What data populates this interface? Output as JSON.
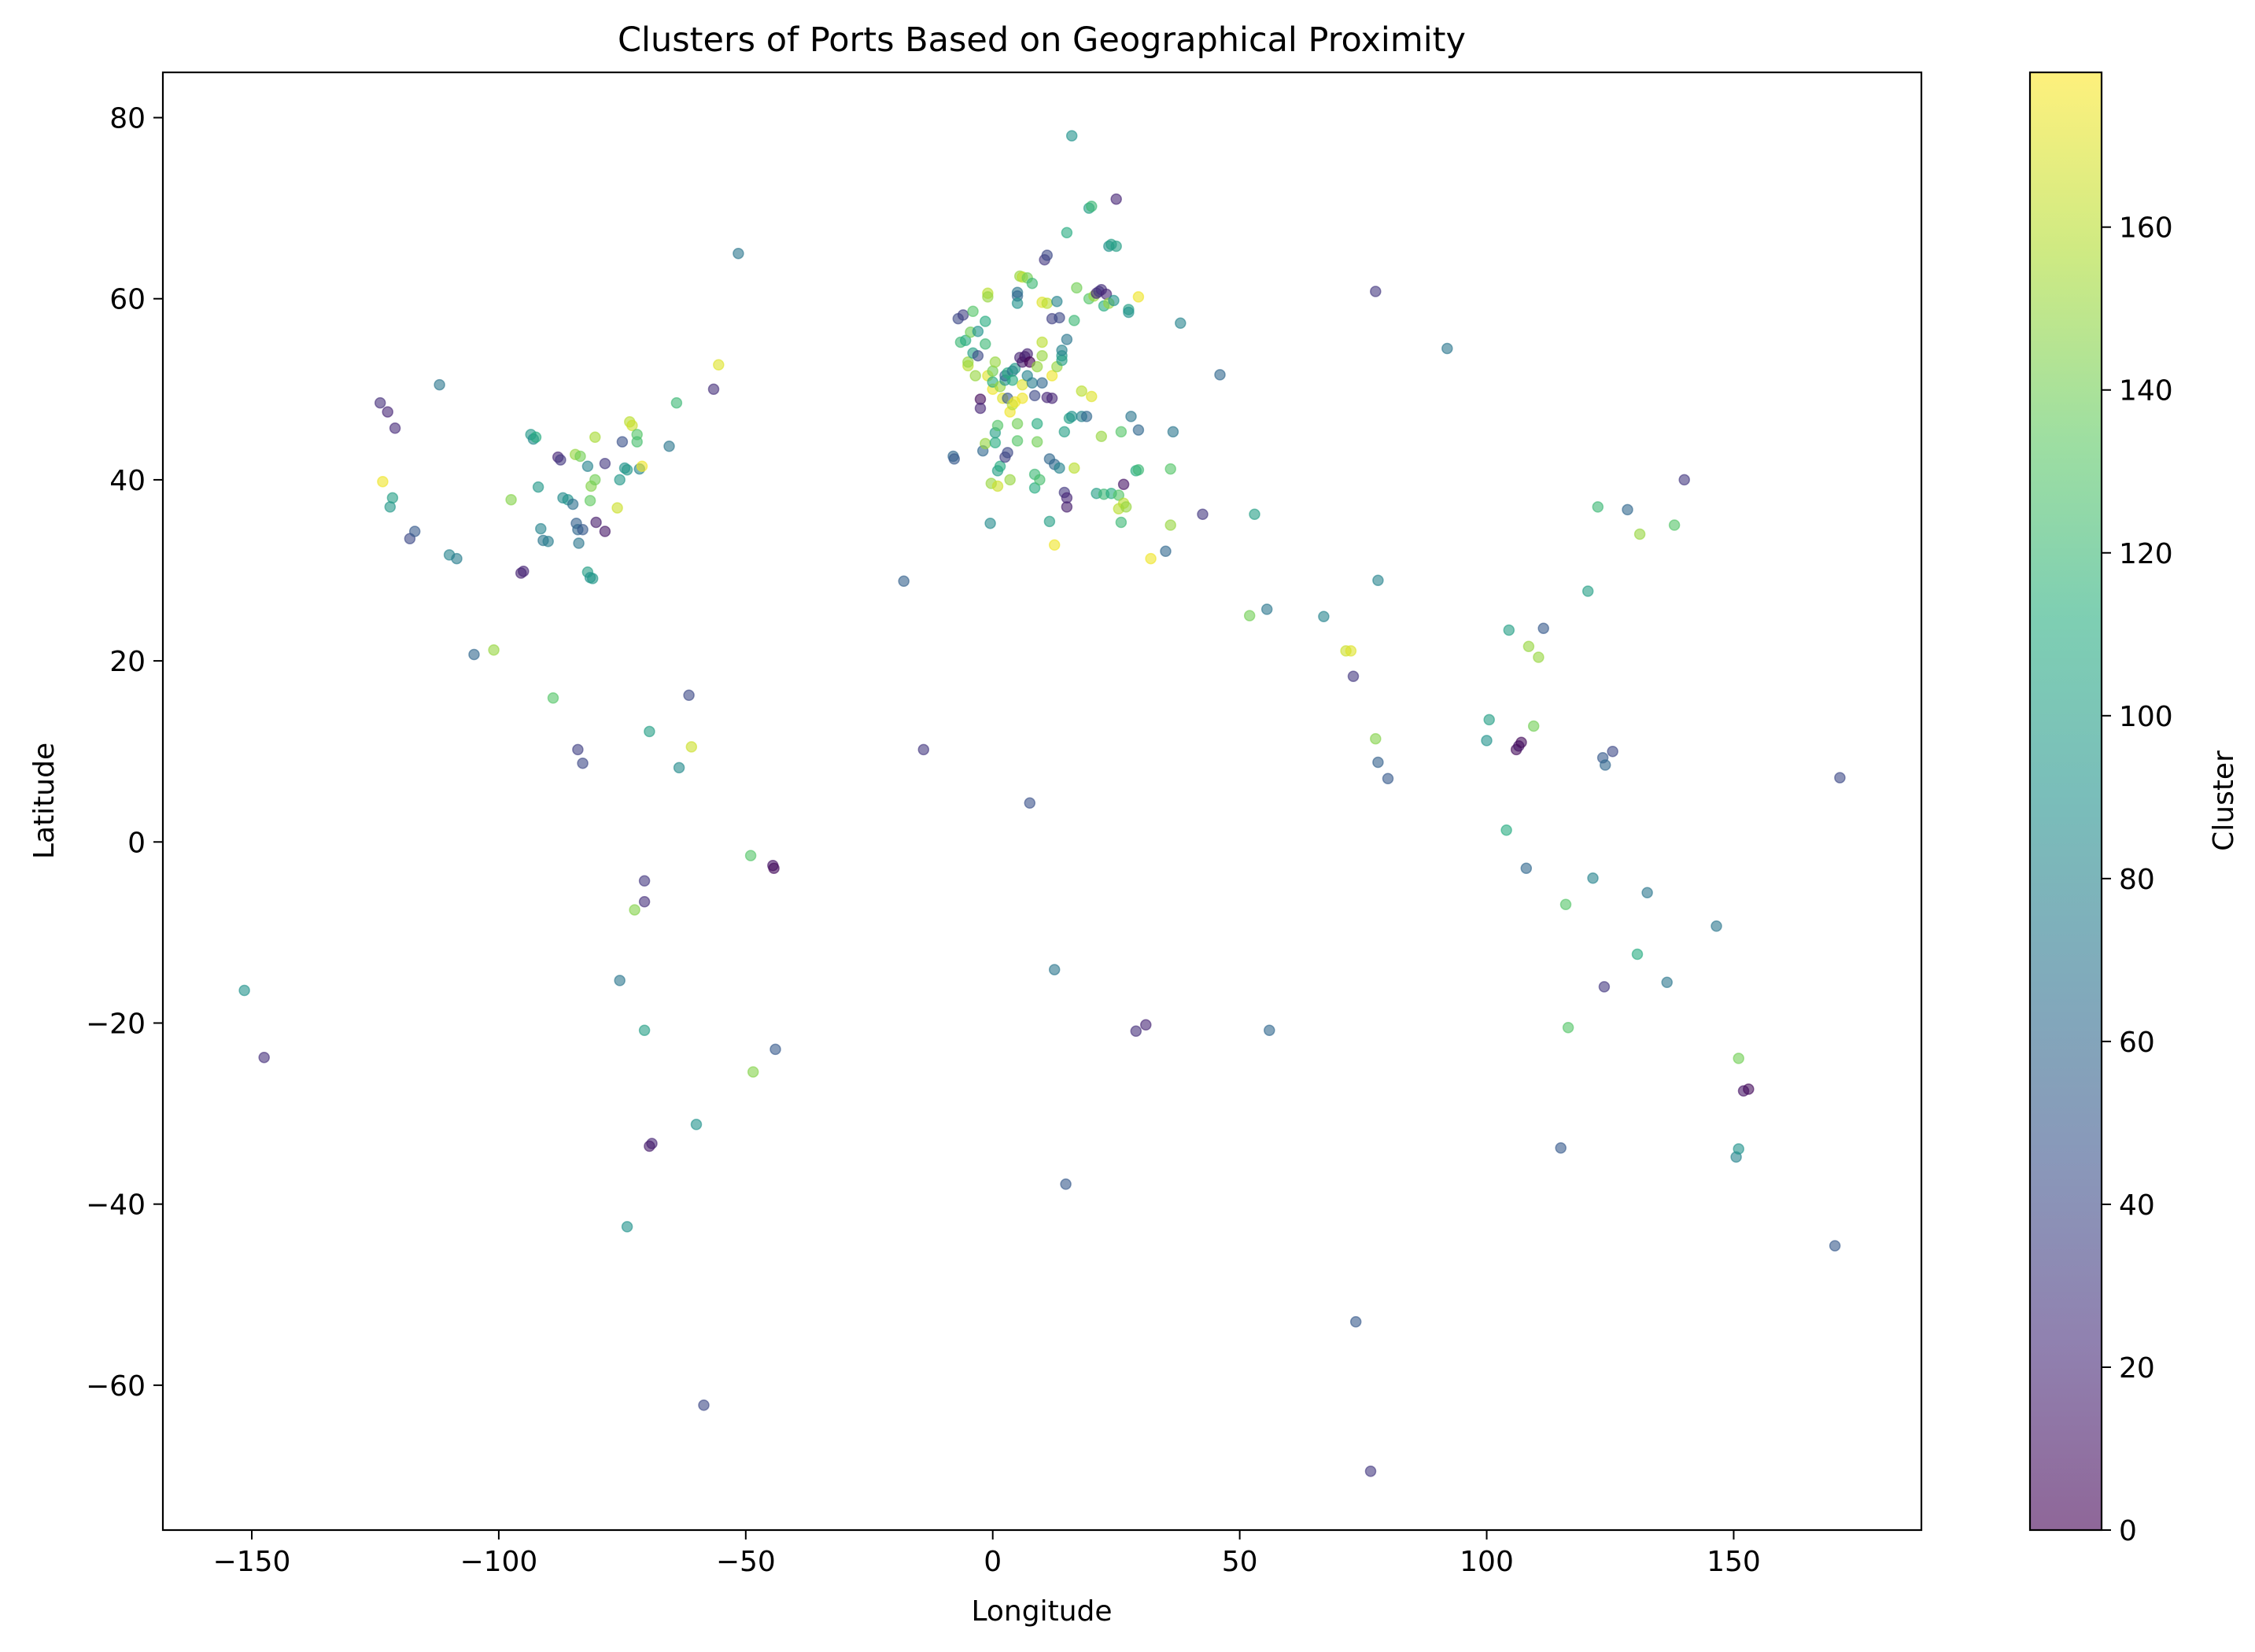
{
  "chart_data": {
    "type": "scatter",
    "title": "Clusters of Ports Based on Geographical Proximity",
    "xlabel": "Longitude",
    "ylabel": "Latitude",
    "xlim": [
      -168,
      188
    ],
    "ylim": [
      -76,
      85
    ],
    "xticks": [
      -150,
      -100,
      -50,
      0,
      50,
      100,
      150
    ],
    "yticks": [
      -60,
      -40,
      -20,
      0,
      20,
      40,
      60,
      80
    ],
    "grid": false,
    "marker_alpha": 0.6,
    "colormap": "viridis",
    "colorbar": {
      "label": "Cluster",
      "range": [
        0,
        179
      ],
      "ticks": [
        0,
        20,
        40,
        60,
        80,
        100,
        120,
        140,
        160
      ]
    },
    "points": [
      [
        -124,
        48.5,
        25
      ],
      [
        -122.5,
        47.5,
        20
      ],
      [
        -121,
        45.7,
        22
      ],
      [
        -123.5,
        39.8,
        175
      ],
      [
        -121.5,
        38,
        100
      ],
      [
        -122,
        37,
        95
      ],
      [
        -118,
        33.5,
        40
      ],
      [
        -117,
        34.3,
        50
      ],
      [
        -112,
        50.5,
        70
      ],
      [
        -110,
        31.7,
        80
      ],
      [
        -108.5,
        31.3,
        75
      ],
      [
        -105,
        20.7,
        60
      ],
      [
        -101,
        21.2,
        150
      ],
      [
        -95.5,
        29.7,
        18
      ],
      [
        -95,
        29.9,
        20
      ],
      [
        -97.5,
        37.8,
        145
      ],
      [
        -93.5,
        45,
        95
      ],
      [
        -93,
        44.5,
        85
      ],
      [
        -92.5,
        44.7,
        110
      ],
      [
        -92,
        39.2,
        95
      ],
      [
        -91.5,
        34.6,
        80
      ],
      [
        -91,
        33.3,
        70
      ],
      [
        -90,
        33.2,
        75
      ],
      [
        -89,
        15.9,
        130
      ],
      [
        -88,
        42.5,
        20
      ],
      [
        -87.5,
        42.2,
        30
      ],
      [
        -87,
        38,
        85
      ],
      [
        -86,
        37.8,
        90
      ],
      [
        -85,
        37.3,
        65
      ],
      [
        -84.5,
        42.8,
        150
      ],
      [
        -84.3,
        35.2,
        55
      ],
      [
        -84,
        34.5,
        60
      ],
      [
        -83.8,
        33,
        70
      ],
      [
        -83.5,
        42.6,
        140
      ],
      [
        -83,
        34.5,
        50
      ],
      [
        -84,
        10.2,
        35
      ],
      [
        -83,
        8.7,
        40
      ],
      [
        -82,
        29.8,
        100
      ],
      [
        -81.5,
        29.2,
        90
      ],
      [
        -81,
        29.1,
        95
      ],
      [
        -82,
        41.5,
        80
      ],
      [
        -81.5,
        37.7,
        135
      ],
      [
        -81.3,
        39.3,
        145
      ],
      [
        -80.5,
        40,
        140
      ],
      [
        -80.5,
        44.7,
        155
      ],
      [
        -80.3,
        35.3,
        15
      ],
      [
        -78.5,
        34.3,
        12
      ],
      [
        -78.5,
        41.8,
        30
      ],
      [
        -76,
        36.9,
        165
      ],
      [
        -75.5,
        40,
        95
      ],
      [
        -75,
        44.2,
        45
      ],
      [
        -74.5,
        41.3,
        90
      ],
      [
        -74,
        41.1,
        95
      ],
      [
        -73.5,
        46.4,
        160
      ],
      [
        -73,
        46,
        165
      ],
      [
        -72,
        45,
        130
      ],
      [
        -72,
        44.2,
        125
      ],
      [
        -71.5,
        41.2,
        80
      ],
      [
        -71,
        41.5,
        175
      ],
      [
        -65.5,
        43.7,
        70
      ],
      [
        -64,
        48.5,
        120
      ],
      [
        -61.5,
        16.2,
        40
      ],
      [
        -61,
        10.5,
        165
      ],
      [
        -63.5,
        8.2,
        85
      ],
      [
        -69.5,
        12.2,
        100
      ],
      [
        -56.5,
        50,
        25
      ],
      [
        -55.5,
        52.7,
        170
      ],
      [
        -51.5,
        65,
        70
      ],
      [
        -70.5,
        -4.3,
        30
      ],
      [
        -70.5,
        -6.6,
        25
      ],
      [
        -72.5,
        -7.5,
        145
      ],
      [
        -75.5,
        -15.3,
        70
      ],
      [
        -70.5,
        -20.8,
        100
      ],
      [
        -69,
        -33.3,
        20
      ],
      [
        -69.5,
        -33.6,
        15
      ],
      [
        -60,
        -31.2,
        90
      ],
      [
        -74,
        -42.5,
        90
      ],
      [
        -58.5,
        -62.2,
        40
      ],
      [
        -49,
        -1.5,
        130
      ],
      [
        -44.5,
        -2.6,
        10
      ],
      [
        -44.3,
        -2.9,
        5
      ],
      [
        -44,
        -22.9,
        50
      ],
      [
        -48.5,
        -25.4,
        145
      ],
      [
        -151.5,
        -16.4,
        90
      ],
      [
        -147.5,
        -23.8,
        25
      ],
      [
        -18,
        28.8,
        55
      ],
      [
        -14,
        10.2,
        30
      ],
      [
        -8,
        42.6,
        60
      ],
      [
        -7.8,
        42.3,
        50
      ],
      [
        -7,
        57.8,
        40
      ],
      [
        -6.5,
        55.2,
        120
      ],
      [
        -6,
        58.2,
        35
      ],
      [
        -5.5,
        55.4,
        110
      ],
      [
        -5,
        52.6,
        160
      ],
      [
        -5,
        53,
        150
      ],
      [
        -4.5,
        56.3,
        140
      ],
      [
        -4,
        58.6,
        130
      ],
      [
        -4,
        54,
        100
      ],
      [
        -3.5,
        51.5,
        150
      ],
      [
        -3,
        53.7,
        40
      ],
      [
        -3,
        56.4,
        90
      ],
      [
        -2.5,
        48.9,
        5
      ],
      [
        -2.5,
        47.9,
        20
      ],
      [
        -2,
        43.2,
        60
      ],
      [
        -1.5,
        44,
        150
      ],
      [
        -1.5,
        57.5,
        110
      ],
      [
        -1.5,
        55,
        120
      ],
      [
        -1,
        60.6,
        160
      ],
      [
        -1,
        60.2,
        150
      ],
      [
        -0.5,
        35.2,
        85
      ],
      [
        -0.3,
        39.6,
        150
      ],
      [
        -1,
        51.5,
        170
      ],
      [
        0,
        50,
        175
      ],
      [
        0,
        50.8,
        110
      ],
      [
        0,
        52,
        140
      ],
      [
        0.5,
        53,
        150
      ],
      [
        0.5,
        44.1,
        110
      ],
      [
        0.5,
        45.2,
        100
      ],
      [
        1,
        41,
        100
      ],
      [
        1,
        46,
        130
      ],
      [
        1,
        39.3,
        165
      ],
      [
        1.5,
        41.5,
        110
      ],
      [
        1.5,
        50.3,
        150
      ],
      [
        2,
        49,
        170
      ],
      [
        2.5,
        51,
        90
      ],
      [
        2.5,
        42.5,
        35
      ],
      [
        2.5,
        51.5,
        60
      ],
      [
        3,
        43,
        40
      ],
      [
        3,
        51.8,
        110
      ],
      [
        3,
        49,
        50
      ],
      [
        3.5,
        40,
        150
      ],
      [
        3.5,
        47.5,
        175
      ],
      [
        4,
        52,
        70
      ],
      [
        4,
        48.3,
        160
      ],
      [
        4,
        51,
        110
      ],
      [
        4.5,
        52.3,
        95
      ],
      [
        4.5,
        48.6,
        175
      ],
      [
        5,
        60.7,
        70
      ],
      [
        5,
        60.3,
        60
      ],
      [
        5,
        59.5,
        90
      ],
      [
        5,
        46.2,
        140
      ],
      [
        5,
        44.3,
        130
      ],
      [
        5.5,
        62.5,
        150
      ],
      [
        5.5,
        53.5,
        20
      ],
      [
        6,
        62.4,
        160
      ],
      [
        6,
        53,
        15
      ],
      [
        6,
        50.5,
        170
      ],
      [
        6,
        49,
        175
      ],
      [
        6.5,
        53.6,
        10
      ],
      [
        7,
        62.3,
        140
      ],
      [
        7,
        53.9,
        20
      ],
      [
        7,
        51.5,
        80
      ],
      [
        7.5,
        4.3,
        45
      ],
      [
        7.5,
        53,
        0
      ],
      [
        8,
        61.7,
        120
      ],
      [
        8,
        50.7,
        75
      ],
      [
        8.5,
        49.3,
        40
      ],
      [
        8.5,
        40.6,
        120
      ],
      [
        8.5,
        39.1,
        110
      ],
      [
        9,
        46.2,
        110
      ],
      [
        9,
        44.2,
        140
      ],
      [
        9,
        52.5,
        150
      ],
      [
        9.5,
        40,
        125
      ],
      [
        10,
        55.2,
        160
      ],
      [
        10,
        53.7,
        150
      ],
      [
        10,
        50.7,
        60
      ],
      [
        10,
        59.6,
        170
      ],
      [
        10.5,
        64.3,
        30
      ],
      [
        11,
        59.5,
        160
      ],
      [
        11,
        64.8,
        40
      ],
      [
        11,
        49.1,
        20
      ],
      [
        11.5,
        35.4,
        100
      ],
      [
        11.5,
        42.3,
        60
      ],
      [
        12,
        49,
        20
      ],
      [
        12,
        51.5,
        175
      ],
      [
        12,
        57.8,
        35
      ],
      [
        12.5,
        41.7,
        60
      ],
      [
        12.5,
        32.8,
        175
      ],
      [
        12.5,
        -14.1,
        70
      ],
      [
        13,
        52.5,
        150
      ],
      [
        13,
        59.7,
        80
      ],
      [
        13.5,
        57.9,
        40
      ],
      [
        13.5,
        41.3,
        80
      ],
      [
        14,
        53.7,
        95
      ],
      [
        14,
        53.2,
        100
      ],
      [
        14,
        54.3,
        80
      ],
      [
        14.5,
        45.3,
        100
      ],
      [
        14.5,
        38.6,
        30
      ],
      [
        14.8,
        -37.8,
        50
      ],
      [
        15,
        67.3,
        110
      ],
      [
        15,
        55.5,
        70
      ],
      [
        15,
        37,
        15
      ],
      [
        15,
        38,
        20
      ],
      [
        15.5,
        46.8,
        100
      ],
      [
        16,
        47,
        90
      ],
      [
        16,
        78,
        90
      ],
      [
        16.5,
        41.3,
        160
      ],
      [
        16.5,
        57.6,
        120
      ],
      [
        17,
        61.2,
        140
      ],
      [
        18,
        49.8,
        160
      ],
      [
        18,
        47,
        80
      ],
      [
        19,
        47,
        60
      ],
      [
        19.5,
        60,
        130
      ],
      [
        19.5,
        70,
        100
      ],
      [
        20,
        49.2,
        170
      ],
      [
        20,
        70.2,
        120
      ],
      [
        20.5,
        60.3,
        150
      ],
      [
        21,
        38.5,
        100
      ],
      [
        21,
        60.6,
        20
      ],
      [
        21.5,
        60.8,
        30
      ],
      [
        22,
        61,
        25
      ],
      [
        22,
        44.8,
        150
      ],
      [
        22.5,
        38.4,
        120
      ],
      [
        22.5,
        59.2,
        110
      ],
      [
        23,
        60.5,
        20
      ],
      [
        23.5,
        65.8,
        90
      ],
      [
        23.5,
        59.5,
        150
      ],
      [
        24,
        38.5,
        110
      ],
      [
        24,
        66,
        100
      ],
      [
        24.5,
        59.8,
        90
      ],
      [
        25,
        65.8,
        100
      ],
      [
        25,
        71,
        20
      ],
      [
        25.5,
        38.3,
        130
      ],
      [
        25.5,
        36.8,
        160
      ],
      [
        26,
        45.3,
        130
      ],
      [
        26,
        35.3,
        120
      ],
      [
        26.5,
        37.4,
        160
      ],
      [
        26.5,
        39.5,
        10
      ],
      [
        27,
        37,
        150
      ],
      [
        27.5,
        58.8,
        100
      ],
      [
        27.5,
        58.5,
        90
      ],
      [
        28,
        47,
        70
      ],
      [
        29,
        41,
        110
      ],
      [
        29.5,
        41.1,
        120
      ],
      [
        29.5,
        45.5,
        60
      ],
      [
        29.5,
        60.2,
        175
      ],
      [
        29,
        -20.9,
        25
      ],
      [
        31,
        -20.2,
        20
      ],
      [
        32,
        31.3,
        175
      ],
      [
        35,
        32.1,
        60
      ],
      [
        36,
        35,
        150
      ],
      [
        36,
        41.2,
        130
      ],
      [
        36.5,
        45.3,
        70
      ],
      [
        38,
        57.3,
        80
      ],
      [
        42.5,
        36.2,
        30
      ],
      [
        46,
        51.6,
        60
      ],
      [
        52,
        25,
        140
      ],
      [
        53,
        36.2,
        100
      ],
      [
        55.5,
        25.7,
        70
      ],
      [
        56,
        -20.8,
        60
      ],
      [
        67,
        24.9,
        80
      ],
      [
        71.5,
        21.1,
        165
      ],
      [
        72.5,
        21.1,
        170
      ],
      [
        73,
        18.3,
        30
      ],
      [
        73.5,
        -53,
        50
      ],
      [
        76.5,
        -69.5,
        30
      ],
      [
        77.5,
        60.8,
        30
      ],
      [
        77.5,
        11.4,
        145
      ],
      [
        78,
        8.8,
        55
      ],
      [
        78,
        28.9,
        80
      ],
      [
        80,
        7,
        50
      ],
      [
        92,
        54.5,
        70
      ],
      [
        100,
        11.2,
        90
      ],
      [
        100.5,
        13.5,
        100
      ],
      [
        104,
        1.3,
        110
      ],
      [
        104.5,
        23.4,
        100
      ],
      [
        106,
        10.2,
        5
      ],
      [
        106.5,
        10.6,
        10
      ],
      [
        107,
        11,
        5
      ],
      [
        108,
        -2.9,
        60
      ],
      [
        108.5,
        21.6,
        150
      ],
      [
        109.5,
        12.8,
        140
      ],
      [
        110.5,
        20.4,
        150
      ],
      [
        111.5,
        23.6,
        50
      ],
      [
        116,
        -6.9,
        130
      ],
      [
        116.5,
        -20.5,
        130
      ],
      [
        115,
        -33.8,
        50
      ],
      [
        120.5,
        27.7,
        100
      ],
      [
        121.5,
        -4,
        80
      ],
      [
        122.5,
        37,
        120
      ],
      [
        123.5,
        9.3,
        50
      ],
      [
        124,
        8.5,
        60
      ],
      [
        123.8,
        -16,
        30
      ],
      [
        125.5,
        10,
        40
      ],
      [
        128.5,
        36.7,
        60
      ],
      [
        130.5,
        -12.4,
        110
      ],
      [
        131,
        34,
        150
      ],
      [
        132.5,
        -5.6,
        70
      ],
      [
        136.5,
        -15.5,
        70
      ],
      [
        138,
        35,
        130
      ],
      [
        140,
        40,
        30
      ],
      [
        146.5,
        -9.3,
        70
      ],
      [
        150.5,
        -34.8,
        80
      ],
      [
        151,
        -33.9,
        90
      ],
      [
        151,
        -23.9,
        140
      ],
      [
        152,
        -27.5,
        10
      ],
      [
        153,
        -27.3,
        5
      ],
      [
        170.5,
        -44.6,
        50
      ],
      [
        171.5,
        7.1,
        40
      ]
    ]
  }
}
